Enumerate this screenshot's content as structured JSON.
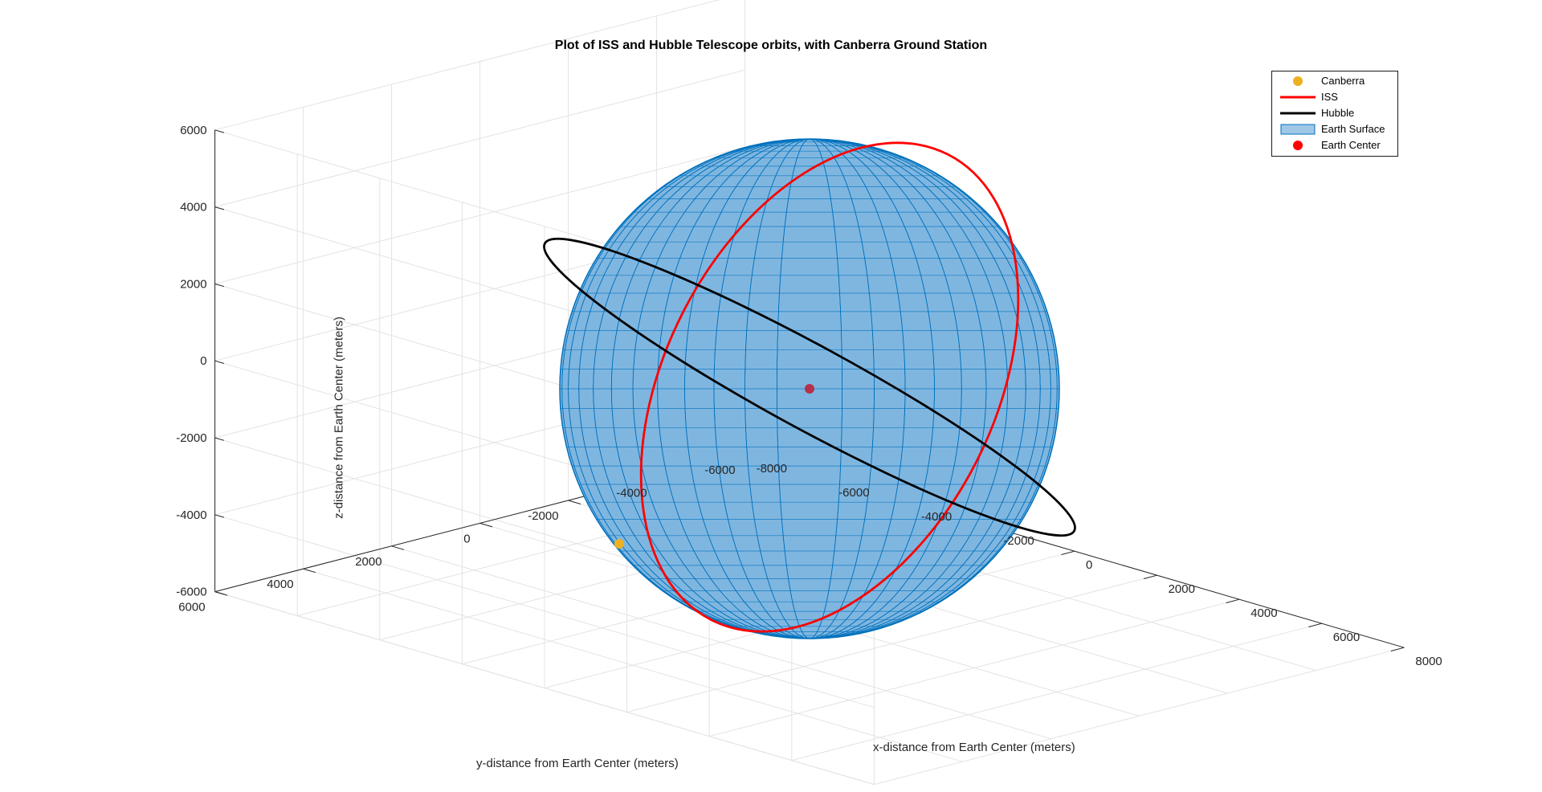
{
  "chart_data": {
    "type": "scatter",
    "projection": "3d",
    "title": "Plot of ISS and Hubble Telescope orbits, with Canberra Ground Station",
    "xlabel": "x-distance from Earth Center (meters)",
    "ylabel": "y-distance from Earth Center (meters)",
    "zlabel": "z-distance from Earth Center (meters)",
    "xlim": [
      -8000,
      8000
    ],
    "ylim": [
      -6000,
      6000
    ],
    "zlim": [
      -6000,
      6000
    ],
    "xticks": [
      -8000,
      -6000,
      -4000,
      -2000,
      0,
      2000,
      4000,
      6000,
      8000
    ],
    "yticks": [
      -6000,
      -4000,
      -2000,
      0,
      2000,
      4000,
      6000
    ],
    "zticks": [
      -6000,
      -4000,
      -2000,
      0,
      2000,
      4000,
      6000
    ],
    "grid": true,
    "legend_position": "top-right",
    "series": [
      {
        "name": "Canberra",
        "kind": "marker",
        "color": "#EDB120",
        "points": [
          [
            -4460,
            2682,
            -3675
          ]
        ]
      },
      {
        "name": "ISS",
        "kind": "orbit-line",
        "color": "#FF0000",
        "radius_approx": 6780,
        "inclination_deg": 51.6
      },
      {
        "name": "Hubble",
        "kind": "orbit-line",
        "color": "#000000",
        "radius_approx": 6920,
        "inclination_deg": 28.5
      },
      {
        "name": "Earth Surface",
        "kind": "surface",
        "color": "#0072BD",
        "radius_approx": 6371
      },
      {
        "name": "Earth Center",
        "kind": "marker",
        "color": "#FF0000",
        "points": [
          [
            0,
            0,
            0
          ]
        ]
      }
    ]
  }
}
